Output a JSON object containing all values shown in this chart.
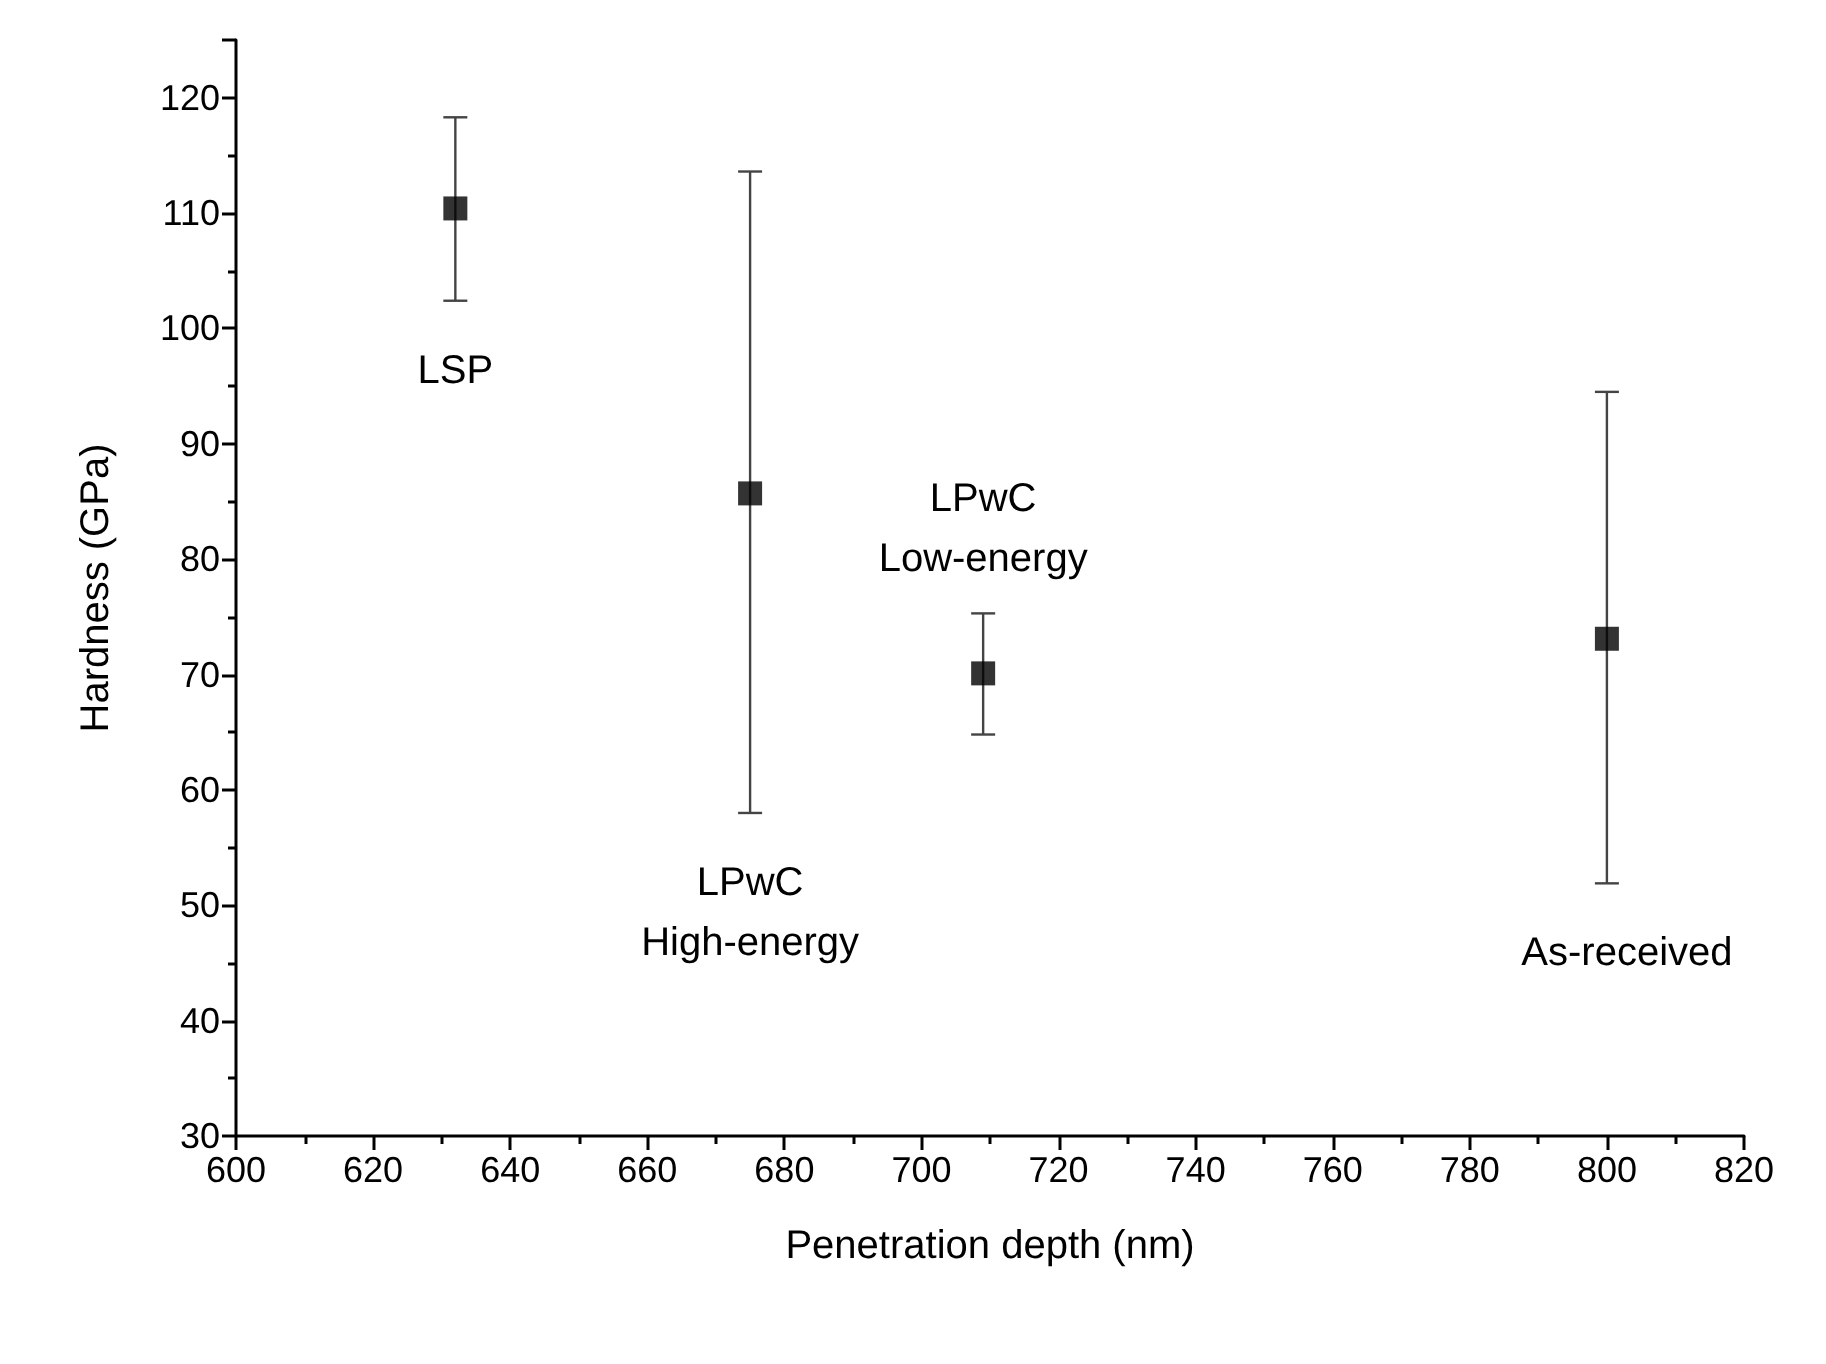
{
  "chart_data": {
    "type": "scatter",
    "xlabel": "Penetration depth (nm)",
    "ylabel": "Hardness (GPa)",
    "x": [
      632,
      675,
      709,
      800
    ],
    "values": [
      110.4,
      85.7,
      70.1,
      73.1
    ],
    "errors": [
      [
        102.4,
        118.3
      ],
      [
        58.0,
        113.6
      ],
      [
        64.8,
        75.3
      ],
      [
        51.9,
        94.5
      ]
    ],
    "color": "#000000",
    "marker": "square",
    "xlim": [
      600,
      820
    ],
    "xticks": [
      600,
      620,
      640,
      660,
      680,
      700,
      720,
      740,
      760,
      780,
      800,
      820
    ],
    "ylim": [
      30,
      125
    ],
    "yticks": [
      30,
      40,
      50,
      60,
      70,
      80,
      90,
      100,
      110,
      120
    ],
    "annotations": [
      "LSP",
      "LPwC\nHigh-energy",
      "LPwC\nLow-energy",
      "As-received"
    ]
  }
}
